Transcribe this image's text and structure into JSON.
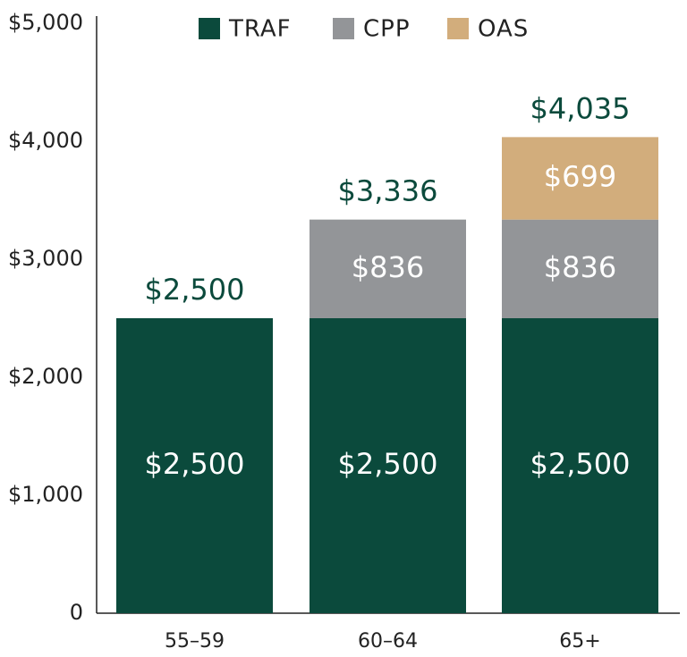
{
  "chart_data": {
    "type": "stacked_bar",
    "categories": [
      "55–59",
      "60–64",
      "65+"
    ],
    "series": [
      {
        "name": "TRAF",
        "color": "#0b4a3c",
        "values": [
          2500,
          2500,
          2500
        ],
        "value_labels": [
          "$2,500",
          "$2,500",
          "$2,500"
        ]
      },
      {
        "name": "CPP",
        "color": "#939598",
        "values": [
          null,
          836,
          836
        ],
        "value_labels": [
          null,
          "$836",
          "$836"
        ]
      },
      {
        "name": "OAS",
        "color": "#d2ad7c",
        "values": [
          null,
          null,
          699
        ],
        "value_labels": [
          null,
          null,
          "$699"
        ]
      }
    ],
    "totals": {
      "values": [
        2500,
        3336,
        4035
      ],
      "value_labels": [
        "$2,500",
        "$3,336",
        "$4,035"
      ],
      "color": "#0b4a3c"
    },
    "ylim": [
      0,
      5000
    ],
    "yticks": [
      0,
      {
        "value": 1000,
        "label": "$1,000"
      },
      {
        "value": 2000,
        "label": "$2,000"
      },
      {
        "value": 3000,
        "label": "$3,000"
      },
      {
        "value": 4000,
        "label": "$4,000"
      },
      {
        "value": 5000,
        "label": "$5,000"
      }
    ]
  }
}
